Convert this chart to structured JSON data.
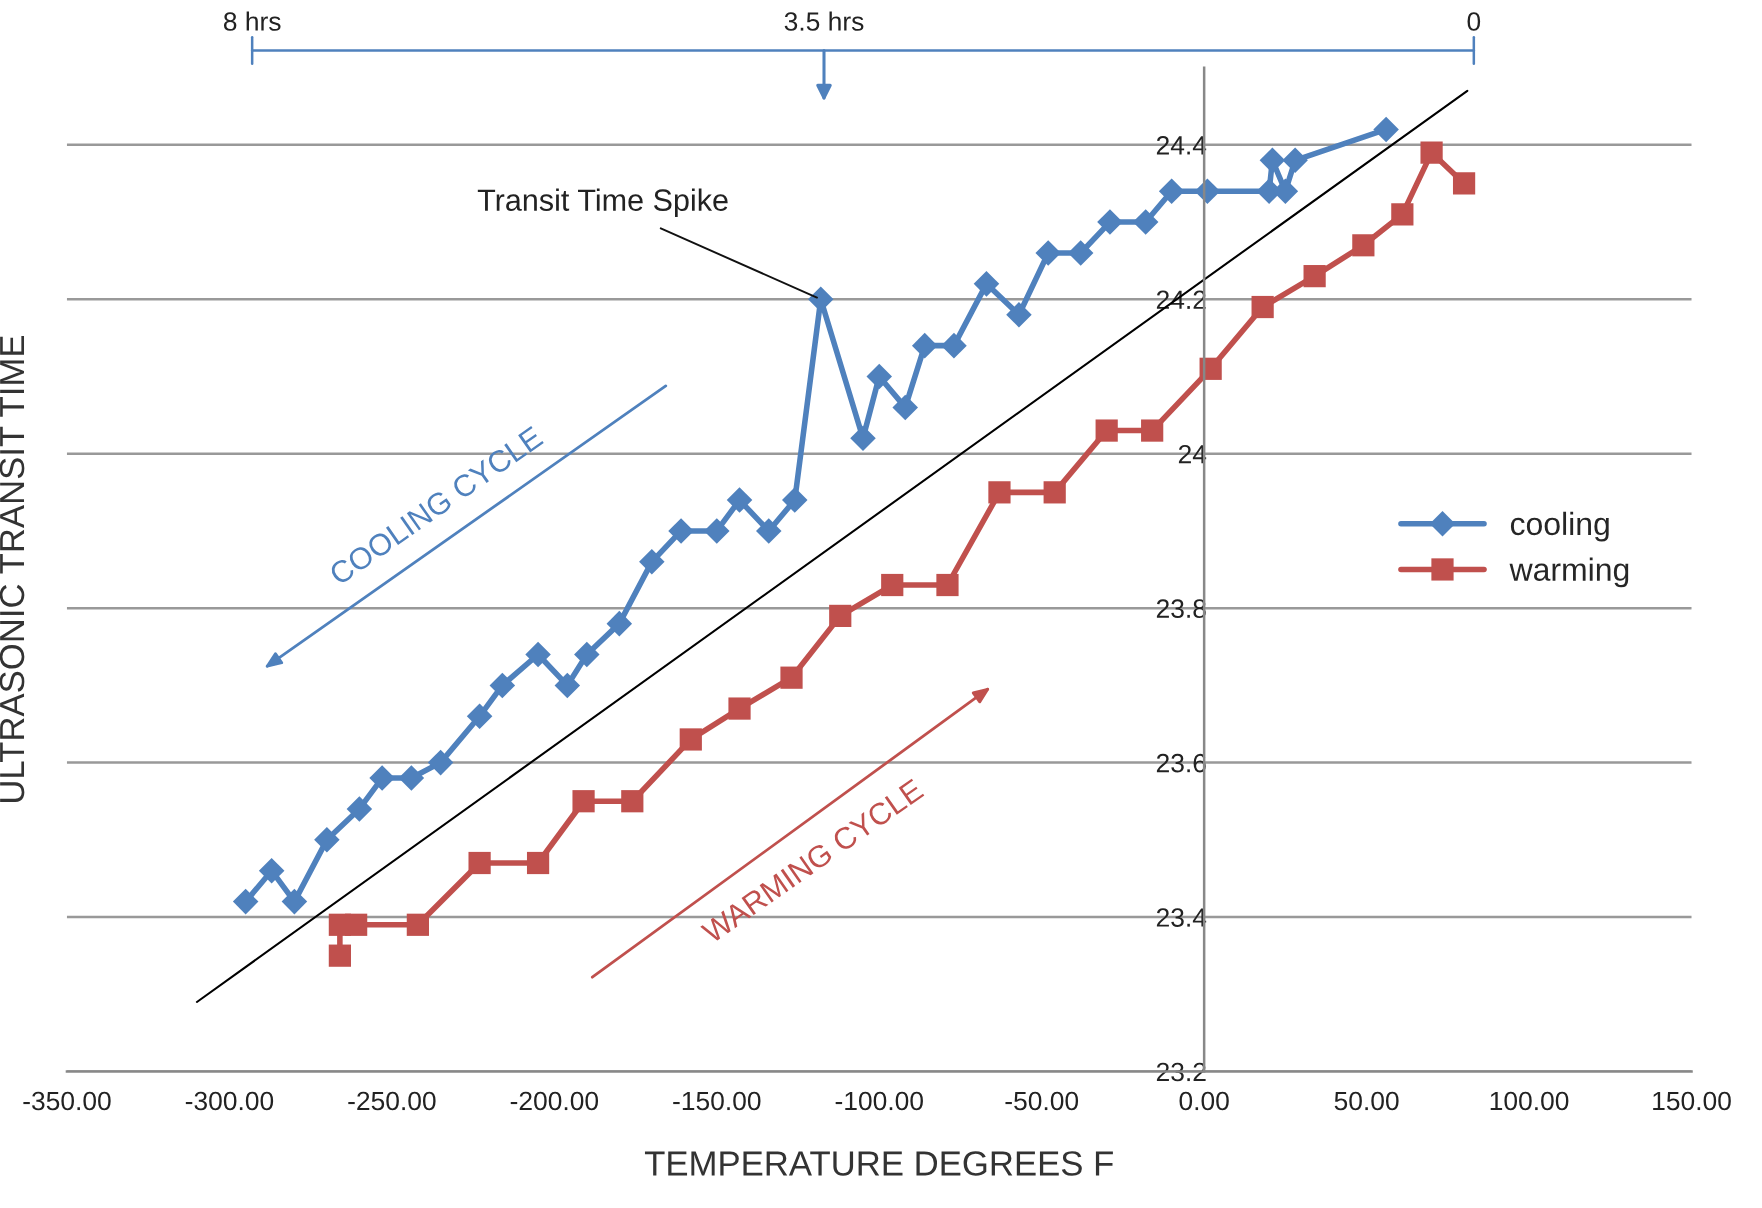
{
  "chart_data": {
    "type": "line",
    "xlabel": "TEMPERATURE DEGREES F",
    "ylabel": "ULTRASONIC TRANSIT TIME",
    "series": [
      {
        "name": "cooling",
        "color": "#4f81bd",
        "marker": "diamond",
        "x": [
          -295,
          -287,
          -280,
          -270,
          -260,
          -253,
          -244,
          -235,
          -223,
          -216,
          -205,
          -196,
          -190,
          -180,
          -170,
          -161,
          -150,
          -143,
          -134,
          -126,
          -118,
          -105,
          -100,
          -92,
          -86,
          -77,
          -67,
          -57,
          -48,
          -38,
          -29,
          -18,
          -10,
          1,
          20,
          21,
          25,
          28,
          56
        ],
        "values": [
          23.42,
          23.46,
          23.42,
          23.5,
          23.54,
          23.58,
          23.58,
          23.6,
          23.66,
          23.7,
          23.74,
          23.7,
          23.74,
          23.78,
          23.86,
          23.9,
          23.9,
          23.94,
          23.9,
          23.94,
          24.2,
          24.02,
          24.1,
          24.06,
          24.14,
          24.14,
          24.22,
          24.18,
          24.26,
          24.26,
          24.3,
          24.3,
          24.34,
          24.34,
          24.34,
          24.38,
          24.34,
          24.38,
          24.42
        ]
      },
      {
        "name": "warming",
        "color": "#c0504d",
        "marker": "square",
        "x": [
          -266,
          -266,
          -261,
          -242,
          -223,
          -205,
          -191,
          -176,
          -158,
          -143,
          -127,
          -112,
          -96,
          -79,
          -63,
          -46,
          -30,
          -16,
          2,
          18,
          34,
          49,
          61,
          70,
          80
        ],
        "values": [
          23.35,
          23.39,
          23.39,
          23.39,
          23.47,
          23.47,
          23.55,
          23.55,
          23.63,
          23.67,
          23.71,
          23.79,
          23.83,
          23.83,
          23.95,
          23.95,
          24.03,
          24.03,
          24.11,
          24.19,
          24.23,
          24.27,
          24.31,
          24.39,
          24.35
        ]
      },
      {
        "type": "line",
        "color": "#000000",
        "marker": "none",
        "x": [
          -310,
          81
        ],
        "values": [
          23.29,
          24.47
        ]
      }
    ],
    "xlim": [
      -350,
      150
    ],
    "xticks": [
      {
        "value": -350,
        "label": "-350.00"
      },
      {
        "value": -300,
        "label": "-300.00"
      },
      {
        "value": -250,
        "label": "-250.00"
      },
      {
        "value": -200,
        "label": "-200.00"
      },
      {
        "value": -150,
        "label": "-150.00"
      },
      {
        "value": -100,
        "label": "-100.00"
      },
      {
        "value": -50,
        "label": "-50.00"
      },
      {
        "value": 0,
        "label": "0.00"
      },
      {
        "value": 50,
        "label": "50.00"
      },
      {
        "value": 100,
        "label": "100.00"
      },
      {
        "value": 150,
        "label": "150.00"
      }
    ],
    "ylim": [
      23.2,
      24.5
    ],
    "yticks": [
      23.2,
      23.4,
      23.6,
      23.8,
      24,
      24.2,
      24.4
    ],
    "grid": "y",
    "legend": "right",
    "annotations": [
      {
        "text": "Transit Time Spike",
        "x": -118,
        "y": 24.2
      },
      "COOLING CYCLE",
      "WARMING CYCLE",
      "8 hrs",
      "3.5 hrs",
      "0"
    ]
  }
}
